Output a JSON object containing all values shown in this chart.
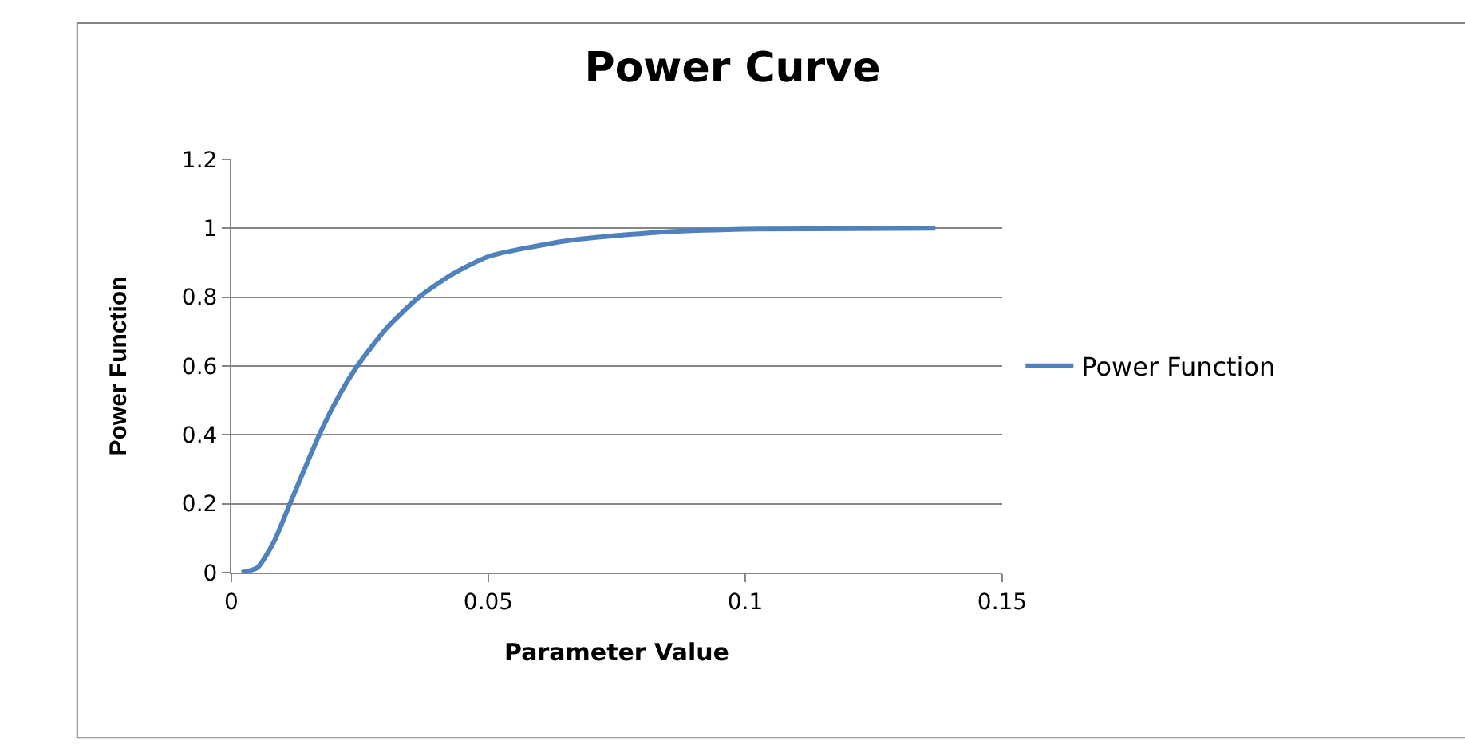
{
  "chart_data": {
    "type": "line",
    "title": "Power Curve",
    "xlabel": "Parameter Value",
    "ylabel": "Power Function",
    "series": [
      {
        "name": "Power Function",
        "color": "#4f81bd",
        "x": [
          0.002,
          0.0051,
          0.0083,
          0.0114,
          0.0171,
          0.0208,
          0.0245,
          0.0302,
          0.0365,
          0.0428,
          0.05,
          0.0658,
          0.0846,
          0.1024,
          0.137
        ],
        "values": [
          0,
          0.015,
          0.09,
          0.2,
          0.4,
          0.51,
          0.6,
          0.71,
          0.8,
          0.865,
          0.918,
          0.965,
          0.99,
          0.998,
          1.0
        ]
      }
    ],
    "xlim": [
      0,
      0.15
    ],
    "xticks": [
      0,
      0.05,
      0.1,
      0.15
    ],
    "ylim": [
      0,
      1.2
    ],
    "yticks": [
      0,
      0.2,
      0.4,
      0.6,
      0.8,
      1,
      1.2
    ],
    "grid": "y",
    "legend": "right",
    "marker": "none",
    "line_style": "solid"
  }
}
